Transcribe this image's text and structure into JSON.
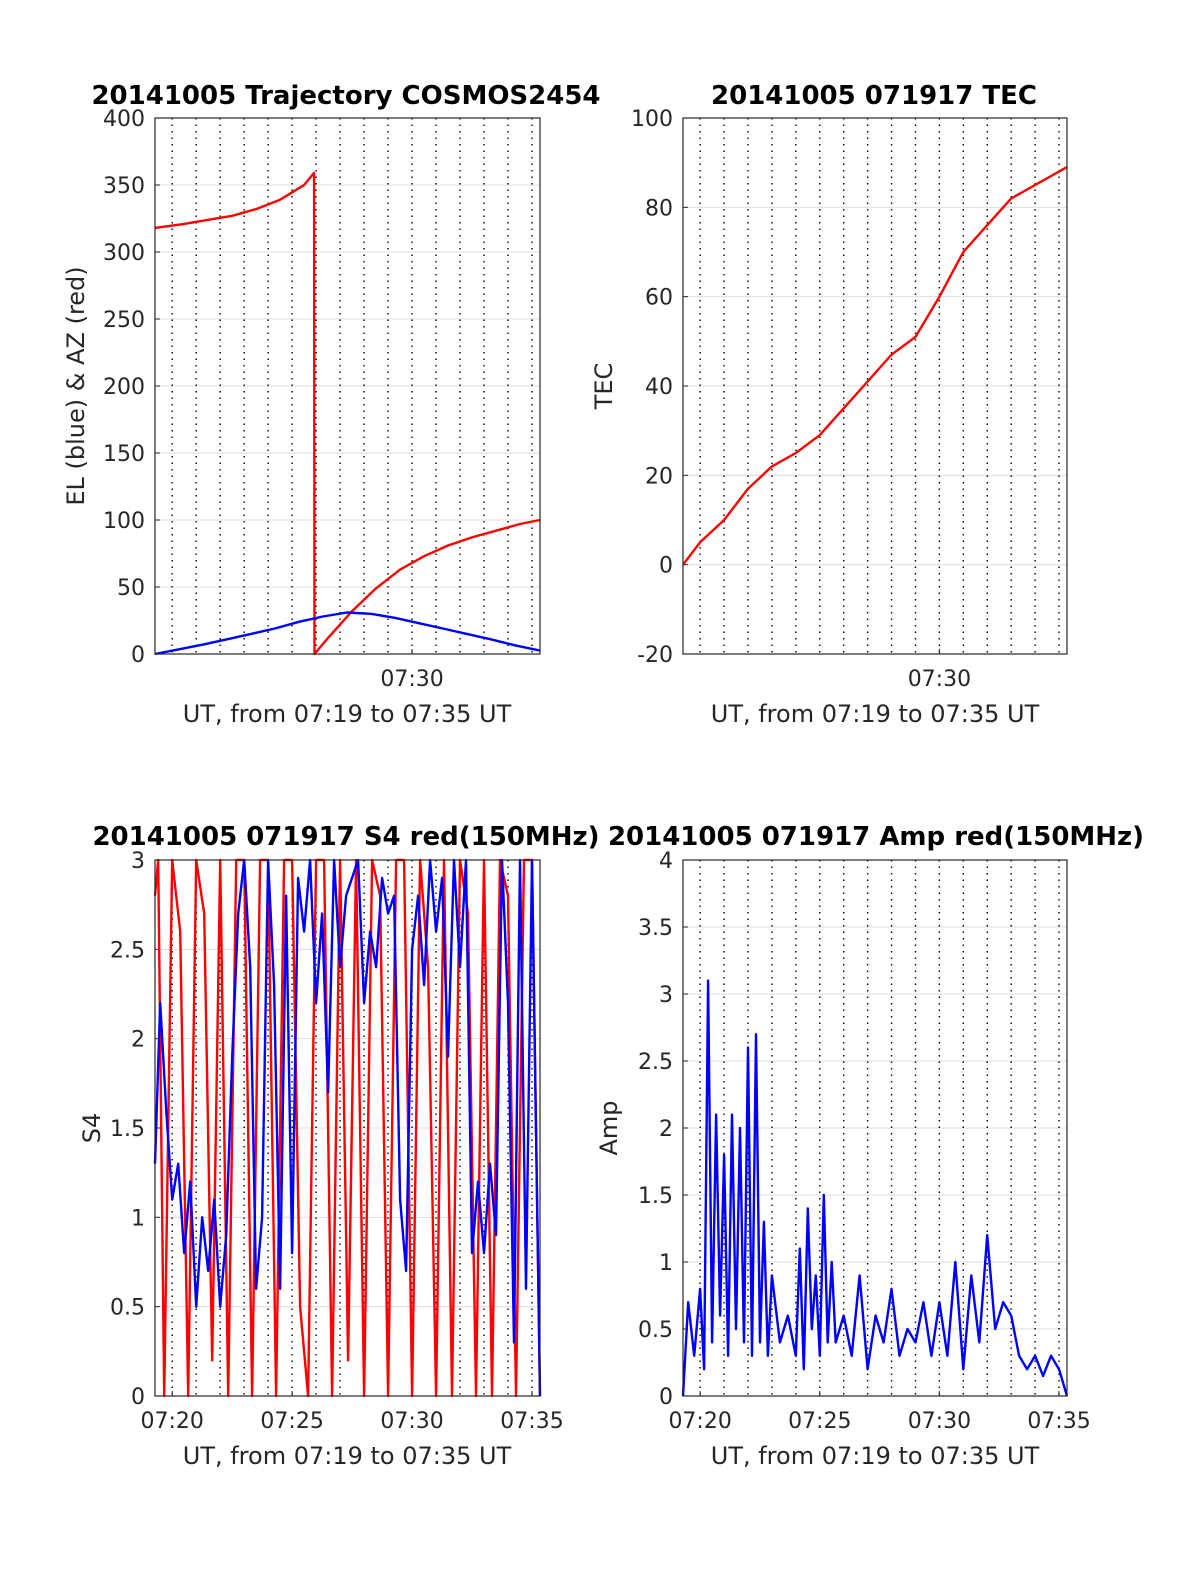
{
  "chart_data": [
    {
      "type": "line",
      "title": "20141005 Trajectory COSMOS2454",
      "xlabel": "UT, from 07:19 to 07:35 UT",
      "ylabel": "EL (blue) & AZ (red)",
      "xlim": [
        "07:19:17",
        "07:35:20"
      ],
      "ylim": [
        0,
        400
      ],
      "yticks": [
        "0",
        "50",
        "100",
        "150",
        "200",
        "250",
        "300",
        "350",
        "400"
      ],
      "xticks": [
        {
          "t": "07:30:00",
          "label": "07:30"
        }
      ],
      "grid_h": true,
      "series": [
        {
          "color": "#ff0000",
          "x": [
            "07:19:17",
            "07:20:30",
            "07:21:30",
            "07:22:30",
            "07:23:30",
            "07:24:30",
            "07:25:30",
            "07:25:55",
            "07:25:56",
            "07:26:30",
            "07:27:30",
            "07:28:30",
            "07:29:30",
            "07:30:30",
            "07:31:30",
            "07:32:30",
            "07:33:30",
            "07:34:30",
            "07:35:20"
          ],
          "y": [
            318,
            321,
            324,
            327,
            332,
            339,
            350,
            359,
            0,
            12,
            32,
            49,
            63,
            73,
            81,
            87,
            92,
            97,
            100
          ]
        },
        {
          "color": "#0000ff",
          "x": [
            "07:19:17",
            "07:20:17",
            "07:21:17",
            "07:22:17",
            "07:23:17",
            "07:24:17",
            "07:25:17",
            "07:26:17",
            "07:27:17",
            "07:28:17",
            "07:29:17",
            "07:30:17",
            "07:31:17",
            "07:32:17",
            "07:33:17",
            "07:34:17",
            "07:35:20"
          ],
          "y": [
            0,
            3.5,
            7,
            11,
            15,
            19,
            24,
            28,
            31,
            30,
            27,
            23,
            19,
            15,
            11,
            6.5,
            2.5
          ]
        }
      ]
    },
    {
      "type": "line",
      "title": "20141005 071917 TEC",
      "xlabel": "UT, from 07:19 to 07:35 UT",
      "ylabel": "TEC",
      "xlim": [
        "07:19:17",
        "07:35:20"
      ],
      "ylim": [
        -20,
        100
      ],
      "yticks": [
        "-20",
        "0",
        "20",
        "40",
        "60",
        "80",
        "100"
      ],
      "xticks": [
        {
          "t": "07:30:00",
          "label": "07:30"
        }
      ],
      "grid_h": true,
      "series": [
        {
          "color": "#ff0000",
          "x": [
            "07:19:17",
            "07:20:00",
            "07:21:00",
            "07:22:00",
            "07:23:00",
            "07:24:00",
            "07:25:00",
            "07:26:00",
            "07:27:00",
            "07:28:00",
            "07:29:00",
            "07:30:00",
            "07:31:00",
            "07:32:00",
            "07:33:00",
            "07:34:00",
            "07:35:20"
          ],
          "y": [
            0,
            5,
            10,
            17,
            22,
            25,
            29,
            35,
            41,
            47,
            51,
            60,
            70,
            76,
            82,
            85,
            89
          ]
        }
      ]
    },
    {
      "type": "line",
      "title": "20141005 071917 S4 red(150MHz)",
      "xlabel": "UT, from 07:19 to 07:35 UT",
      "ylabel": "S4",
      "xlim": [
        "07:19:17",
        "07:35:20"
      ],
      "ylim": [
        0,
        3
      ],
      "yticks": [
        "0",
        "0.5",
        "1",
        "1.5",
        "2",
        "2.5",
        "3"
      ],
      "xticks": [
        {
          "t": "07:20:00",
          "label": "07:20"
        },
        {
          "t": "07:25:00",
          "label": "07:25"
        },
        {
          "t": "07:30:00",
          "label": "07:30"
        },
        {
          "t": "07:35:00",
          "label": "07:35"
        }
      ],
      "grid_h": true,
      "series": [
        {
          "color": "#ff0000",
          "x": [
            "07:19:17",
            "07:19:25",
            "07:19:40",
            "07:20:00",
            "07:20:20",
            "07:20:40",
            "07:21:00",
            "07:21:20",
            "07:21:40",
            "07:22:00",
            "07:22:20",
            "07:22:40",
            "07:23:00",
            "07:23:20",
            "07:23:40",
            "07:24:00",
            "07:24:20",
            "07:24:40",
            "07:25:00",
            "07:25:20",
            "07:25:40",
            "07:26:00",
            "07:26:20",
            "07:26:40",
            "07:27:00",
            "07:27:20",
            "07:27:40",
            "07:28:00",
            "07:28:20",
            "07:28:40",
            "07:29:00",
            "07:29:20",
            "07:29:40",
            "07:30:00",
            "07:30:20",
            "07:30:40",
            "07:31:00",
            "07:31:20",
            "07:31:40",
            "07:32:00",
            "07:32:20",
            "07:32:40",
            "07:33:00",
            "07:33:20",
            "07:33:40",
            "07:34:00",
            "07:34:20",
            "07:34:40",
            "07:35:00",
            "07:35:20"
          ],
          "y": [
            2.8,
            3,
            0,
            3,
            2.6,
            0,
            3,
            2.7,
            0.2,
            3,
            0,
            3,
            3,
            0,
            3,
            3,
            0,
            3,
            3,
            0.5,
            0,
            3,
            3,
            0,
            3,
            0.2,
            3,
            0,
            3,
            2.8,
            0,
            3,
            3,
            0,
            3,
            2.4,
            0,
            3,
            0,
            3,
            2.7,
            0,
            3,
            0,
            3,
            2.8,
            0,
            3,
            3,
            0
          ]
        },
        {
          "color": "#0000ff",
          "x": [
            "07:19:17",
            "07:19:30",
            "07:19:45",
            "07:20:00",
            "07:20:15",
            "07:20:30",
            "07:20:45",
            "07:21:00",
            "07:21:15",
            "07:21:30",
            "07:21:45",
            "07:22:00",
            "07:22:15",
            "07:22:30",
            "07:22:45",
            "07:23:00",
            "07:23:15",
            "07:23:30",
            "07:23:45",
            "07:24:00",
            "07:24:15",
            "07:24:30",
            "07:24:45",
            "07:25:00",
            "07:25:15",
            "07:25:30",
            "07:25:45",
            "07:26:00",
            "07:26:15",
            "07:26:30",
            "07:26:45",
            "07:27:00",
            "07:27:15",
            "07:27:30",
            "07:27:45",
            "07:28:00",
            "07:28:15",
            "07:28:30",
            "07:28:45",
            "07:29:00",
            "07:29:15",
            "07:29:30",
            "07:29:45",
            "07:30:00",
            "07:30:15",
            "07:30:30",
            "07:30:45",
            "07:31:00",
            "07:31:15",
            "07:31:30",
            "07:31:45",
            "07:32:00",
            "07:32:15",
            "07:32:30",
            "07:32:45",
            "07:33:00",
            "07:33:15",
            "07:33:30",
            "07:33:45",
            "07:34:00",
            "07:34:15",
            "07:34:30",
            "07:34:45",
            "07:35:00",
            "07:35:20"
          ],
          "y": [
            1.3,
            2.2,
            1.6,
            1.1,
            1.3,
            0.8,
            1.2,
            0.5,
            1.0,
            0.7,
            1.1,
            0.5,
            0.9,
            1.9,
            2.7,
            3,
            2.4,
            0.6,
            1.0,
            3,
            2.3,
            0.6,
            2.8,
            0.8,
            2.9,
            2.6,
            3,
            2.2,
            2.7,
            1.7,
            3,
            2.4,
            2.8,
            2.9,
            3,
            2.2,
            2.6,
            2.4,
            2.9,
            2.7,
            2.8,
            1.1,
            0.7,
            2.5,
            2.8,
            2.3,
            3,
            2.6,
            2.9,
            1.9,
            3,
            2.4,
            3,
            0.8,
            1.2,
            0.8,
            1.3,
            0.9,
            3,
            2.2,
            0.3,
            3,
            0.6,
            3,
            0
          ]
        }
      ]
    },
    {
      "type": "line",
      "title": "20141005 071917 Amp red(150MHz)",
      "xlabel": "UT, from 07:19 to 07:35 UT",
      "ylabel": "Amp",
      "xlim": [
        "07:19:17",
        "07:35:20"
      ],
      "ylim": [
        0,
        4
      ],
      "yticks": [
        "0",
        "0.5",
        "1",
        "1.5",
        "2",
        "2.5",
        "3",
        "3.5",
        "4"
      ],
      "xticks": [
        {
          "t": "07:20:00",
          "label": "07:20"
        },
        {
          "t": "07:25:00",
          "label": "07:25"
        },
        {
          "t": "07:30:00",
          "label": "07:30"
        },
        {
          "t": "07:35:00",
          "label": "07:35"
        }
      ],
      "grid_h": true,
      "series": [
        {
          "color": "#0000ff",
          "x": [
            "07:19:17",
            "07:19:30",
            "07:19:45",
            "07:20:00",
            "07:20:10",
            "07:20:20",
            "07:20:30",
            "07:20:40",
            "07:20:50",
            "07:21:00",
            "07:21:10",
            "07:21:20",
            "07:21:30",
            "07:21:40",
            "07:21:50",
            "07:22:00",
            "07:22:10",
            "07:22:20",
            "07:22:30",
            "07:22:40",
            "07:22:50",
            "07:23:00",
            "07:23:20",
            "07:23:40",
            "07:24:00",
            "07:24:10",
            "07:24:20",
            "07:24:30",
            "07:24:40",
            "07:24:50",
            "07:25:00",
            "07:25:10",
            "07:25:20",
            "07:25:30",
            "07:25:40",
            "07:26:00",
            "07:26:20",
            "07:26:40",
            "07:27:00",
            "07:27:20",
            "07:27:40",
            "07:28:00",
            "07:28:20",
            "07:28:40",
            "07:29:00",
            "07:29:20",
            "07:29:40",
            "07:30:00",
            "07:30:20",
            "07:30:40",
            "07:31:00",
            "07:31:20",
            "07:31:40",
            "07:32:00",
            "07:32:20",
            "07:32:40",
            "07:33:00",
            "07:33:20",
            "07:33:40",
            "07:34:00",
            "07:34:20",
            "07:34:40",
            "07:35:00",
            "07:35:20"
          ],
          "y": [
            0,
            0.7,
            0.3,
            0.8,
            0.2,
            3.1,
            0.4,
            2.1,
            0.6,
            1.8,
            0.3,
            2.1,
            0.5,
            2.0,
            0.4,
            2.6,
            0.3,
            2.7,
            0.4,
            1.3,
            0.3,
            0.9,
            0.4,
            0.6,
            0.3,
            1.1,
            0.2,
            1.4,
            0.5,
            0.9,
            0.3,
            1.5,
            0.4,
            1.0,
            0.4,
            0.6,
            0.3,
            0.9,
            0.2,
            0.6,
            0.4,
            0.8,
            0.3,
            0.5,
            0.4,
            0.7,
            0.3,
            0.7,
            0.3,
            1.0,
            0.2,
            0.9,
            0.4,
            1.2,
            0.5,
            0.7,
            0.6,
            0.3,
            0.2,
            0.3,
            0.15,
            0.3,
            0.2,
            0
          ]
        }
      ]
    }
  ]
}
